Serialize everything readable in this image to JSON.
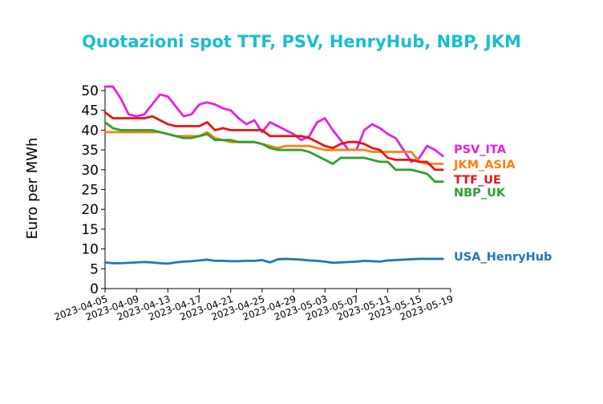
{
  "chart_data": {
    "type": "line",
    "title": "Quotazioni spot TTF, PSV, HenryHub, NBP, JKM",
    "xlabel": "",
    "ylabel": "Euro per MWh",
    "x_ticks": [
      "2023-04-05",
      "2023-04-09",
      "2023-04-13",
      "2023-04-17",
      "2023-04-21",
      "2023-04-25",
      "2023-04-29",
      "2023-05-03",
      "2023-05-07",
      "2023-05-11",
      "2023-05-15",
      "2023-05-19"
    ],
    "y_ticks": [
      0,
      5,
      10,
      15,
      20,
      25,
      30,
      35,
      40,
      45,
      50
    ],
    "xlim": [
      "2023-04-05",
      "2023-05-19"
    ],
    "ylim": [
      0,
      51
    ],
    "grid": false,
    "legend_placement": "right of plot, labels at line ends",
    "x": [
      "2023-04-05",
      "2023-04-06",
      "2023-04-07",
      "2023-04-08",
      "2023-04-09",
      "2023-04-10",
      "2023-04-11",
      "2023-04-12",
      "2023-04-13",
      "2023-04-14",
      "2023-04-15",
      "2023-04-16",
      "2023-04-17",
      "2023-04-18",
      "2023-04-19",
      "2023-04-20",
      "2023-04-21",
      "2023-04-22",
      "2023-04-23",
      "2023-04-24",
      "2023-04-25",
      "2023-04-26",
      "2023-04-27",
      "2023-04-28",
      "2023-04-29",
      "2023-04-30",
      "2023-05-01",
      "2023-05-02",
      "2023-05-03",
      "2023-05-04",
      "2023-05-05",
      "2023-05-06",
      "2023-05-07",
      "2023-05-08",
      "2023-05-09",
      "2023-05-10",
      "2023-05-11",
      "2023-05-12",
      "2023-05-13",
      "2023-05-14",
      "2023-05-15",
      "2023-05-16",
      "2023-05-17",
      "2023-05-18"
    ],
    "series": [
      {
        "name": "PSV_ITA",
        "color": "#e61ee6",
        "label_offset_y": 0,
        "values": [
          51,
          51,
          48,
          44,
          43.5,
          44,
          46.5,
          49,
          48.5,
          46,
          43.5,
          44,
          46.5,
          47,
          46.5,
          45.5,
          45,
          43,
          41.5,
          42.5,
          39.5,
          42,
          41,
          40,
          39,
          37.5,
          38.5,
          42,
          43,
          40,
          37.5,
          35,
          35,
          40,
          41.5,
          40.5,
          39,
          38,
          35,
          32,
          33,
          36,
          35,
          33.5
        ]
      },
      {
        "name": "JKM_ASIA",
        "color": "#ff7f0e",
        "label_offset_y": 0,
        "values": [
          39.5,
          39.5,
          39.5,
          39.5,
          39.5,
          39.5,
          39.5,
          39.5,
          39,
          38.5,
          38.5,
          38.5,
          38.5,
          39.5,
          38,
          37.5,
          37,
          37,
          37,
          37,
          36.5,
          36,
          35.5,
          36,
          36,
          36,
          36,
          35.5,
          35,
          35,
          35,
          35,
          35,
          35,
          34.5,
          34.5,
          34.5,
          34.5,
          34.5,
          34.5,
          32,
          31.5,
          31.5,
          31.5
        ]
      },
      {
        "name": "TTF_UE",
        "color": "#ef1010",
        "label_offset_y": 0,
        "values": [
          44.5,
          43,
          43,
          43,
          43,
          43,
          43.5,
          42.5,
          41.5,
          41,
          41,
          41,
          41,
          42,
          40,
          40.5,
          40,
          40,
          40,
          40,
          40,
          38.5,
          38.5,
          38.5,
          38.5,
          38.5,
          38,
          37,
          36,
          35.5,
          36.5,
          37,
          37,
          36.5,
          35.5,
          35,
          33,
          32.5,
          32.5,
          32.5,
          32,
          32,
          30,
          30
        ]
      },
      {
        "name": "NBP_UK",
        "color": "#2ca02c",
        "label_offset_y": 0,
        "values": [
          42,
          40.5,
          40,
          40,
          40,
          40,
          40,
          39.5,
          39,
          38.5,
          38,
          38,
          38.5,
          39,
          37.5,
          37.5,
          37.5,
          37,
          37,
          37,
          36.5,
          35.5,
          35,
          35,
          35,
          35,
          34.5,
          33.5,
          32.5,
          31.5,
          33,
          33,
          33,
          33,
          32.5,
          32,
          32,
          30,
          30,
          30,
          29.5,
          29,
          27,
          27
        ]
      },
      {
        "name": "USA_HenryHub",
        "color": "#1f77b4",
        "label_offset_y": 0,
        "values": [
          6.6,
          6.4,
          6.4,
          6.5,
          6.6,
          6.7,
          6.6,
          6.4,
          6.3,
          6.6,
          6.8,
          6.9,
          7.1,
          7.3,
          7,
          7,
          6.9,
          6.9,
          7,
          7,
          7.2,
          6.6,
          7.4,
          7.5,
          7.4,
          7.3,
          7.1,
          7.0,
          6.8,
          6.5,
          6.6,
          6.7,
          6.8,
          7.0,
          6.9,
          6.8,
          7.1,
          7.2,
          7.3,
          7.4,
          7.5,
          7.5,
          7.5,
          7.5
        ]
      }
    ]
  }
}
